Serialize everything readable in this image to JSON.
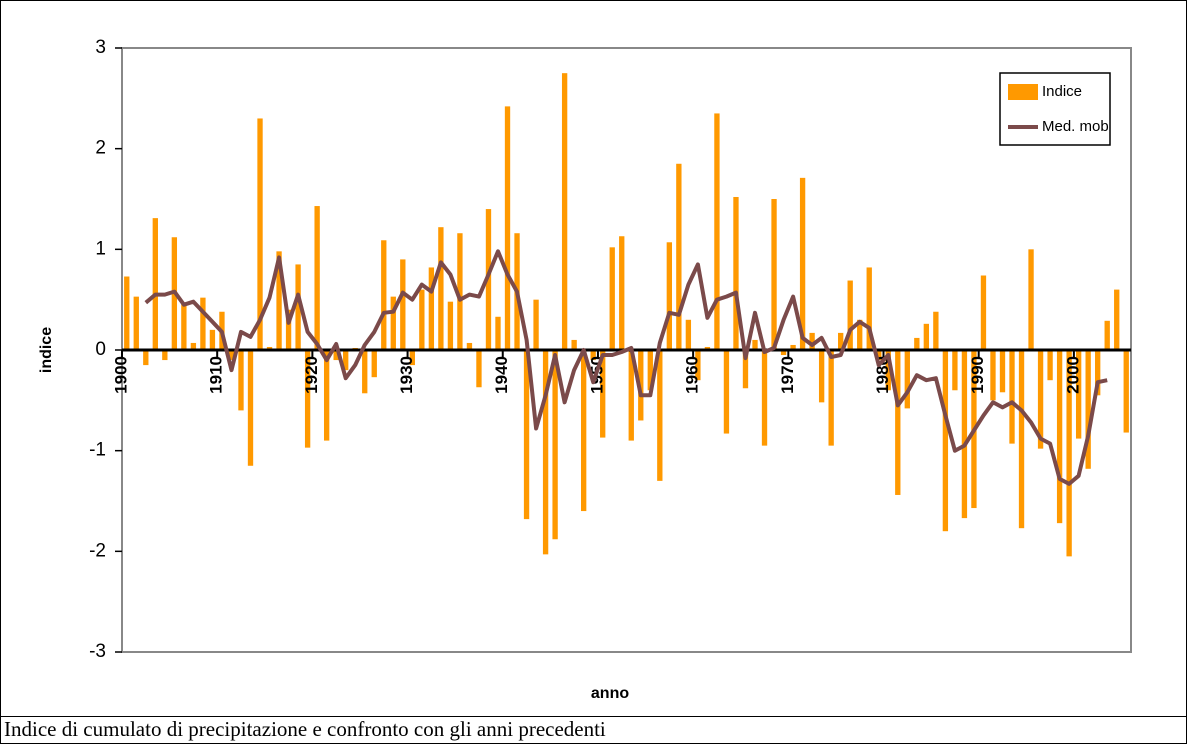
{
  "chart_data": {
    "type": "bar",
    "caption": "Indice di cumulato di precipitazione e confronto con gli anni precedenti",
    "x_label": "anno",
    "y_label": "indice",
    "x": [
      1900,
      1901,
      1902,
      1903,
      1904,
      1905,
      1906,
      1907,
      1908,
      1909,
      1910,
      1911,
      1912,
      1913,
      1914,
      1915,
      1916,
      1917,
      1918,
      1919,
      1920,
      1921,
      1922,
      1923,
      1924,
      1925,
      1926,
      1927,
      1928,
      1929,
      1930,
      1931,
      1932,
      1933,
      1934,
      1935,
      1936,
      1937,
      1938,
      1939,
      1940,
      1941,
      1942,
      1943,
      1944,
      1945,
      1946,
      1947,
      1948,
      1949,
      1950,
      1951,
      1952,
      1953,
      1954,
      1955,
      1956,
      1957,
      1958,
      1959,
      1960,
      1961,
      1962,
      1963,
      1964,
      1965,
      1966,
      1967,
      1968,
      1969,
      1970,
      1971,
      1972,
      1973,
      1974,
      1975,
      1976,
      1977,
      1978,
      1979,
      1980,
      1981,
      1982,
      1983,
      1984,
      1985,
      1986,
      1987,
      1988,
      1989,
      1990,
      1991,
      1992,
      1993,
      1994,
      1995,
      1996,
      1997,
      1998,
      1999,
      2000,
      2001,
      2002,
      2003,
      2004,
      2005
    ],
    "series": [
      {
        "name": "Indice",
        "type": "bar",
        "color": "#FF9900",
        "values": [
          0.73,
          0.53,
          -0.15,
          1.31,
          -0.1,
          1.12,
          0.47,
          0.07,
          0.52,
          0.2,
          0.38,
          -0.1,
          -0.6,
          -1.15,
          2.3,
          0.03,
          0.98,
          0.4,
          0.85,
          -0.97,
          1.43,
          -0.9,
          -0.1,
          -0.2,
          0.02,
          -0.43,
          -0.27,
          1.09,
          0.53,
          0.9,
          -0.15,
          0.6,
          0.82,
          1.22,
          0.48,
          1.16,
          0.07,
          -0.37,
          1.4,
          0.33,
          2.42,
          1.16,
          -1.68,
          0.5,
          -2.03,
          -1.88,
          2.75,
          0.1,
          -1.6,
          -0.1,
          -0.87,
          1.02,
          1.13,
          -0.9,
          -0.7,
          -0.4,
          -1.3,
          1.07,
          1.85,
          0.3,
          -0.3,
          0.03,
          2.35,
          -0.83,
          1.52,
          -0.38,
          0.1,
          -0.95,
          1.5,
          -0.05,
          0.05,
          1.71,
          0.17,
          -0.52,
          -0.95,
          0.17,
          0.69,
          0.3,
          0.82,
          -0.1,
          -0.4,
          -1.44,
          -0.58,
          0.12,
          0.26,
          0.38,
          -1.8,
          -0.4,
          -1.67,
          -1.57,
          0.74,
          -0.5,
          -0.42,
          -0.93,
          -1.77,
          1.0,
          -0.98,
          -0.3,
          -1.72,
          -2.05,
          -0.88,
          -1.18,
          -0.45,
          0.29,
          0.6,
          -0.82
        ]
      },
      {
        "name": "Med. mob",
        "type": "line",
        "color": "#7B4A4A",
        "values": [
          null,
          null,
          0.47,
          0.55,
          0.55,
          0.58,
          0.45,
          0.48,
          0.38,
          0.28,
          0.18,
          -0.2,
          0.18,
          0.13,
          0.3,
          0.52,
          0.92,
          0.27,
          0.55,
          0.18,
          0.06,
          -0.1,
          0.06,
          -0.28,
          -0.15,
          0.05,
          0.18,
          0.37,
          0.38,
          0.57,
          0.5,
          0.65,
          0.58,
          0.87,
          0.75,
          0.5,
          0.55,
          0.53,
          0.75,
          0.98,
          0.75,
          0.58,
          0.1,
          -0.78,
          -0.45,
          -0.05,
          -0.52,
          -0.2,
          0.0,
          -0.32,
          -0.05,
          -0.05,
          -0.02,
          0.02,
          -0.45,
          -0.45,
          0.07,
          0.37,
          0.35,
          0.65,
          0.85,
          0.32,
          0.5,
          0.53,
          0.57,
          -0.08,
          0.37,
          -0.02,
          0.02,
          0.3,
          0.53,
          0.12,
          0.05,
          0.12,
          -0.07,
          -0.05,
          0.2,
          0.28,
          0.22,
          -0.15,
          -0.05,
          -0.55,
          -0.42,
          -0.25,
          -0.3,
          -0.28,
          -0.65,
          -1.0,
          -0.95,
          -0.8,
          -0.65,
          -0.52,
          -0.57,
          -0.52,
          -0.6,
          -0.72,
          -0.88,
          -0.93,
          -1.28,
          -1.33,
          -1.25,
          -0.85,
          -0.32,
          -0.3,
          null,
          null
        ]
      }
    ],
    "xlim": [
      1900,
      2006
    ],
    "xticks": [
      1900,
      1910,
      1920,
      1930,
      1940,
      1950,
      1960,
      1970,
      1980,
      1990,
      2000
    ],
    "ylim": [
      -3,
      3
    ],
    "yticks": [
      -3,
      -2,
      -1,
      0,
      1,
      2,
      3
    ],
    "grid": false,
    "legend": "upper right"
  }
}
